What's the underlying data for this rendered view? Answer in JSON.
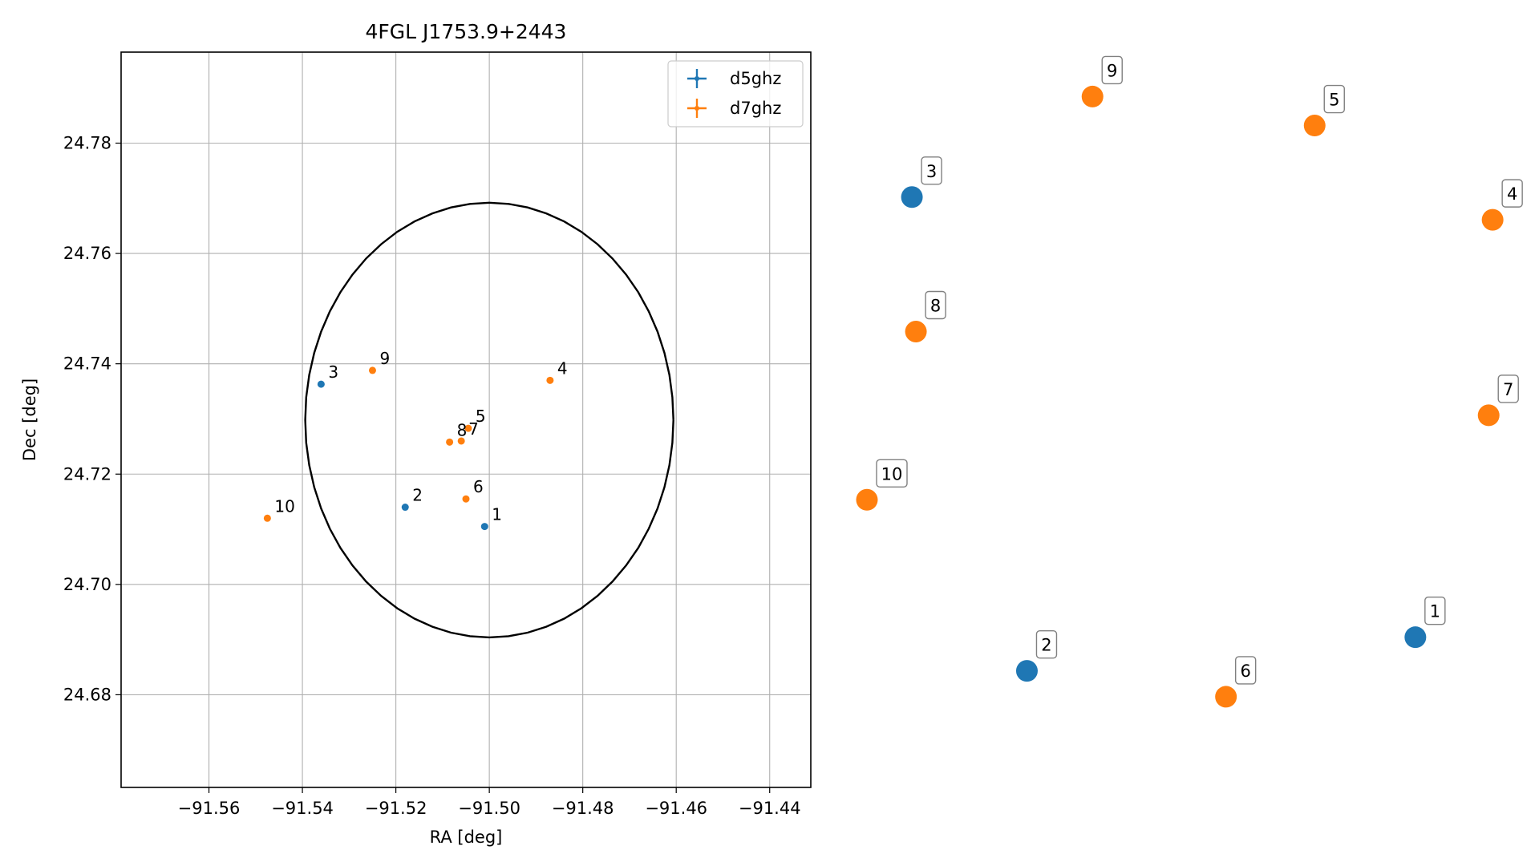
{
  "chart_data": [
    {
      "type": "scatter",
      "title": "4FGL J1753.9+2443",
      "xlabel": "RA [deg]",
      "ylabel": "Dec [deg]",
      "xlim": [
        -91.5788,
        -91.4312
      ],
      "ylim": [
        24.6632,
        24.7965
      ],
      "xticks": [
        -91.56,
        -91.54,
        -91.52,
        -91.5,
        -91.48,
        -91.46,
        -91.44
      ],
      "xtick_labels": [
        "−91.56",
        "−91.54",
        "−91.52",
        "−91.50",
        "−91.48",
        "−91.46",
        "−91.44"
      ],
      "yticks": [
        24.68,
        24.7,
        24.72,
        24.74,
        24.76,
        24.78
      ],
      "ytick_labels": [
        "24.68",
        "24.70",
        "24.72",
        "24.74",
        "24.76",
        "24.78"
      ],
      "grid": true,
      "legend_position": "top-right",
      "series": [
        {
          "name": "d5ghz",
          "color": "#1f77b4",
          "points": [
            {
              "label": "1",
              "x": -91.501,
              "y": 24.7105
            },
            {
              "label": "2",
              "x": -91.518,
              "y": 24.714
            },
            {
              "label": "3",
              "x": -91.536,
              "y": 24.7363
            }
          ]
        },
        {
          "name": "d7ghz",
          "color": "#ff7f0e",
          "points": [
            {
              "label": "4",
              "x": -91.487,
              "y": 24.737
            },
            {
              "label": "5",
              "x": -91.5045,
              "y": 24.7283
            },
            {
              "label": "6",
              "x": -91.505,
              "y": 24.7155
            },
            {
              "label": "7",
              "x": -91.506,
              "y": 24.726
            },
            {
              "label": "8",
              "x": -91.5085,
              "y": 24.7258
            },
            {
              "label": "9",
              "x": -91.525,
              "y": 24.7388
            },
            {
              "label": "10",
              "x": -91.5475,
              "y": 24.712
            }
          ]
        }
      ],
      "circle": {
        "ra": -91.5,
        "dec": 24.7298,
        "radius": 0.0394,
        "color": "#000000"
      }
    },
    {
      "type": "scatter",
      "title": "",
      "xlabel": "",
      "ylabel": "",
      "axes_visible": false,
      "points": [
        {
          "label": "1",
          "series": "d5ghz",
          "x": 0.8756,
          "y": 0.155
        },
        {
          "label": "2",
          "series": "d5ghz",
          "x": 0.2554,
          "y": 0.1035
        },
        {
          "label": "3",
          "series": "d5ghz",
          "x": 0.0718,
          "y": 0.8285
        },
        {
          "label": "4",
          "series": "d7ghz",
          "x": 0.9989,
          "y": 0.7937
        },
        {
          "label": "5",
          "series": "d7ghz",
          "x": 0.7148,
          "y": 0.938
        },
        {
          "label": "6",
          "series": "d7ghz",
          "x": 0.5732,
          "y": 0.0639
        },
        {
          "label": "7",
          "series": "d7ghz",
          "x": 0.9926,
          "y": 0.4946
        },
        {
          "label": "8",
          "series": "d7ghz",
          "x": 0.0782,
          "y": 0.6227
        },
        {
          "label": "9",
          "series": "d7ghz",
          "x": 0.3601,
          "y": 0.9823
        },
        {
          "label": "10",
          "series": "d7ghz",
          "x": 0.0,
          "y": 0.3653
        }
      ]
    }
  ]
}
